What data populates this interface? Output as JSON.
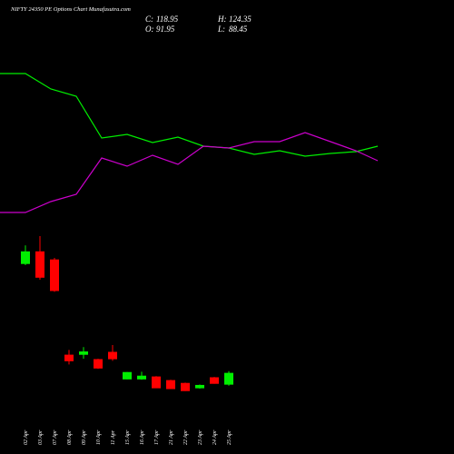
{
  "chart_data": [
    {
      "type": "candlestick",
      "title": "NIFTY 24350 PE Options Chart Munafasutra.com",
      "categories": [
        "02 Apr",
        "03 Apr",
        "07 Apr",
        "08 Apr",
        "09 Apr",
        "10 Apr",
        "11 Apr",
        "15 Apr",
        "16 Apr",
        "17 Apr",
        "21 Apr",
        "22 Apr",
        "23 Apr",
        "24 Apr",
        "25 Apr"
      ],
      "ohlc_labels": {
        "close": "C:",
        "high": "H:",
        "open": "O:",
        "low": "L:"
      },
      "candles": [
        {
          "open": 391,
          "high": 436,
          "low": 387,
          "close": 420
        },
        {
          "open": 420,
          "high": 459,
          "low": 351,
          "close": 357
        },
        {
          "open": 400,
          "high": 405,
          "low": 321,
          "close": 324
        },
        {
          "open": 164,
          "high": 177,
          "low": 141,
          "close": 150
        },
        {
          "open": 166,
          "high": 184,
          "low": 155,
          "close": 172
        },
        {
          "open": 153,
          "high": 155,
          "low": 130,
          "close": 132
        },
        {
          "open": 171,
          "high": 189,
          "low": 150,
          "close": 155
        },
        {
          "open": 105,
          "high": 122,
          "low": 104,
          "close": 121
        },
        {
          "open": 105,
          "high": 123,
          "low": 103,
          "close": 112
        },
        {
          "open": 110,
          "high": 112,
          "low": 82,
          "close": 83
        },
        {
          "open": 101,
          "high": 103,
          "low": 80,
          "close": 81
        },
        {
          "open": 94,
          "high": 96,
          "low": 75,
          "close": 76
        },
        {
          "open": 83,
          "high": 91,
          "low": 81,
          "close": 89
        },
        {
          "open": 108,
          "high": 110,
          "low": 93,
          "close": 94
        },
        {
          "open": 91.95,
          "high": 124.35,
          "low": 88.45,
          "close": 118.95
        }
      ],
      "up_color": "#00ee00",
      "down_color": "#ff0000",
      "ylim": [
        -81,
        1044
      ]
    },
    {
      "type": "line",
      "series": [
        {
          "color": "#00ee00",
          "values": [
            419,
            419,
            402,
            394,
            348,
            352,
            343,
            349,
            339,
            337,
            330,
            334,
            328,
            331,
            333,
            339
          ]
        },
        {
          "color": "#cc00cc",
          "values": [
            266,
            266,
            278,
            286,
            326,
            317,
            329,
            319,
            339,
            337,
            344,
            344,
            354,
            344,
            334,
            323
          ]
        }
      ],
      "ylim": [
        0,
        500
      ]
    }
  ]
}
